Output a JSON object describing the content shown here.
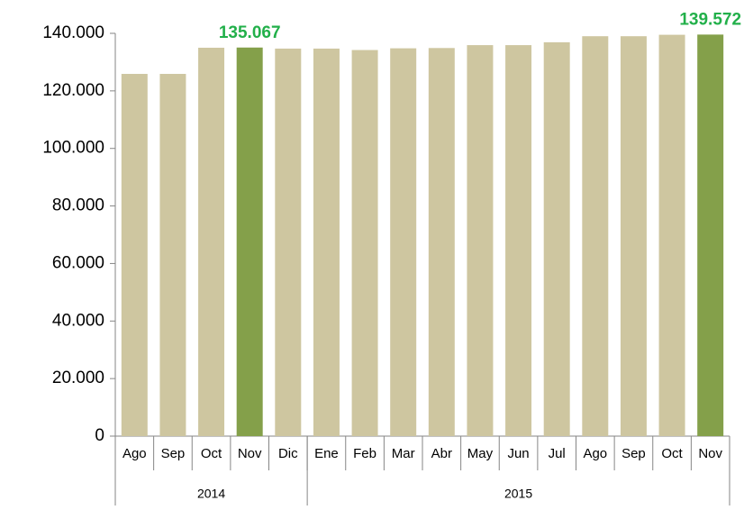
{
  "chart_data": {
    "type": "bar",
    "categories": [
      "Ago",
      "Sep",
      "Oct",
      "Nov",
      "Dic",
      "Ene",
      "Feb",
      "Mar",
      "Abr",
      "May",
      "Jun",
      "Jul",
      "Ago",
      "Sep",
      "Oct",
      "Nov"
    ],
    "values": [
      125900,
      125900,
      135000,
      135067,
      134700,
      134700,
      134200,
      134800,
      134900,
      135900,
      135900,
      136900,
      139000,
      139000,
      139500,
      139572
    ],
    "value_labels": [
      null,
      null,
      null,
      "135.067",
      null,
      null,
      null,
      null,
      null,
      null,
      null,
      null,
      null,
      null,
      null,
      "139.572"
    ],
    "colors": [
      "#cec6a0",
      "#cec6a0",
      "#cec6a0",
      "#84a04a",
      "#cec6a0",
      "#cec6a0",
      "#cec6a0",
      "#cec6a0",
      "#cec6a0",
      "#cec6a0",
      "#cec6a0",
      "#cec6a0",
      "#cec6a0",
      "#cec6a0",
      "#cec6a0",
      "#84a04a"
    ],
    "value_label_color": "#22b04a",
    "groups": [
      {
        "name": "2014",
        "count": 5
      },
      {
        "name": "2015",
        "count": 11
      }
    ],
    "ylim": [
      0,
      140000
    ],
    "yticks": [
      0,
      {
        "value": 20000,
        "label": "20.000"
      },
      {
        "value": 40000,
        "label": "40.000"
      },
      {
        "value": 60000,
        "label": "60.000"
      },
      {
        "value": 80000,
        "label": "80.000"
      },
      {
        "value": 100000,
        "label": "100.000"
      },
      {
        "value": 120000,
        "label": "120.000"
      },
      {
        "value": 140000,
        "label": "140.000"
      }
    ]
  }
}
